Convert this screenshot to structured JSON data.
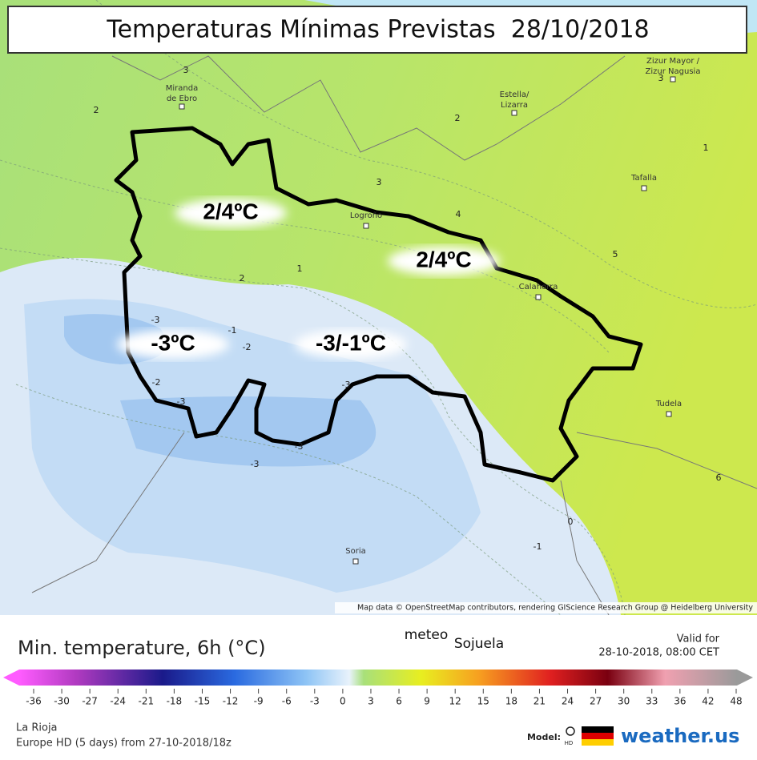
{
  "header": {
    "title": "Temperaturas Mínimas Previstas  28/10/2018"
  },
  "map": {
    "places": [
      {
        "lines": [
          "Miranda",
          "de Ebro"
        ]
      },
      {
        "lines": [
          "Estella/",
          "Lizarra"
        ]
      },
      {
        "lines": [
          "Zizur Mayor /",
          "Zizur Nagusia"
        ]
      },
      {
        "lines": [
          "Tafalla"
        ]
      },
      {
        "lines": [
          "Logroño"
        ]
      },
      {
        "lines": [
          "Calahorra"
        ]
      },
      {
        "lines": [
          "Tudela"
        ]
      },
      {
        "lines": [
          "Soria"
        ]
      }
    ],
    "region_labels": [
      "2/4ºC",
      "2/4ºC",
      "-3ºC",
      "-3/-1ºC"
    ],
    "contour_labels": [
      3,
      2,
      2,
      3,
      4,
      5,
      1,
      3,
      1,
      2,
      -3,
      -1,
      -2,
      -2,
      -3,
      -3,
      -3,
      -3,
      0,
      -1,
      6
    ],
    "attribution": "Map data © OpenStreetMap contributors, rendering GIScience Research Group @ Heidelberg University"
  },
  "legend": {
    "title": "Min. temperature, 6h (°C)",
    "brand": [
      "meteo",
      "Sojuela"
    ],
    "valid_label": "Valid for",
    "valid_time": "28-10-2018, 08:00 CET",
    "scale_ticks": [
      -36,
      -30,
      -27,
      -24,
      -21,
      -18,
      -15,
      -12,
      -9,
      -6,
      -3,
      0,
      3,
      6,
      9,
      12,
      15,
      18,
      21,
      24,
      27,
      30,
      33,
      36,
      42,
      48
    ],
    "region": "La Rioja",
    "model_run": "Europe HD (5 days) from 27-10-2018/18z",
    "model_label": "Model:",
    "model_badge": "HD",
    "site": "weather.us"
  }
}
